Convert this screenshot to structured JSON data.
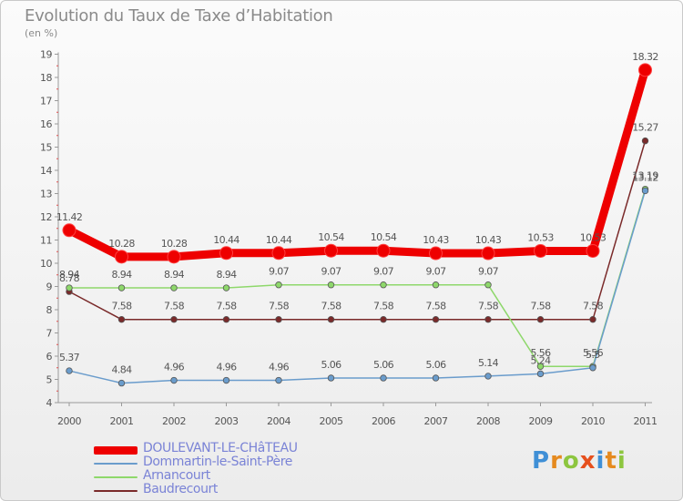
{
  "title": "Evolution du Taux de Taxe d’Habitation",
  "subtitle": "(en %)",
  "logo": {
    "letters": [
      {
        "ch": "P",
        "color": "#3f8fd6"
      },
      {
        "ch": "r",
        "color": "#e58a1f"
      },
      {
        "ch": "o",
        "color": "#8dc63f"
      },
      {
        "ch": "x",
        "color": "#e6501d"
      },
      {
        "ch": "i",
        "color": "#3f8fd6"
      },
      {
        "ch": "t",
        "color": "#e58a1f"
      },
      {
        "ch": "i",
        "color": "#8dc63f"
      }
    ]
  },
  "chart_data": {
    "type": "line",
    "title": "Evolution du Taux de Taxe d’Habitation",
    "ylabel": "(en %)",
    "xlabel": "",
    "x": [
      "2000",
      "2001",
      "2002",
      "2003",
      "2004",
      "2005",
      "2006",
      "2007",
      "2008",
      "2009",
      "2010",
      "2011"
    ],
    "ylim": [
      4,
      19
    ],
    "yticks": [
      4,
      5,
      6,
      7,
      8,
      9,
      10,
      11,
      12,
      13,
      14,
      15,
      16,
      17,
      18,
      19
    ],
    "grid": false,
    "legend_position": "bottom-left",
    "series": [
      {
        "name": "DOULEVANT-LE-CHâTEAU",
        "color": "#ee0000",
        "values": [
          11.42,
          10.28,
          10.28,
          10.44,
          10.44,
          10.54,
          10.54,
          10.43,
          10.43,
          10.53,
          10.53,
          18.32
        ],
        "labels": [
          "11.42",
          "10.28",
          "10.28",
          "10.44",
          "10.44",
          "10.54",
          "10.54",
          "10.43",
          "10.43",
          "10.53",
          "10.53",
          "18.32"
        ]
      },
      {
        "name": "Dommartin-le-Saint-Père",
        "color": "#6a9ccc",
        "values": [
          5.37,
          4.84,
          4.96,
          4.96,
          4.96,
          5.06,
          5.06,
          5.06,
          5.14,
          5.24,
          5.5,
          13.12
        ],
        "labels": [
          "5.37",
          "4.84",
          "4.96",
          "4.96",
          "4.96",
          "5.06",
          "5.06",
          "5.06",
          "5.14",
          "5.24",
          "5.5",
          "13.12"
        ]
      },
      {
        "name": "Arnancourt",
        "color": "#8ed86b",
        "values": [
          8.94,
          8.94,
          8.94,
          8.94,
          9.07,
          9.07,
          9.07,
          9.07,
          9.07,
          5.56,
          5.56,
          13.19
        ],
        "labels": [
          "8.94",
          "8.94",
          "8.94",
          "8.94",
          "9.07",
          "9.07",
          "9.07",
          "9.07",
          "9.07",
          "5.56",
          "5.56",
          "13.19"
        ]
      },
      {
        "name": "Baudrecourt",
        "color": "#7a2a2a",
        "values": [
          8.78,
          7.58,
          7.58,
          7.58,
          7.58,
          7.58,
          7.58,
          7.58,
          7.58,
          7.58,
          7.58,
          15.27
        ],
        "labels": [
          "8.78",
          "7.58",
          "7.58",
          "7.58",
          "7.58",
          "7.58",
          "7.58",
          "7.58",
          "7.58",
          "7.58",
          "7.58",
          "15.27"
        ]
      }
    ]
  }
}
